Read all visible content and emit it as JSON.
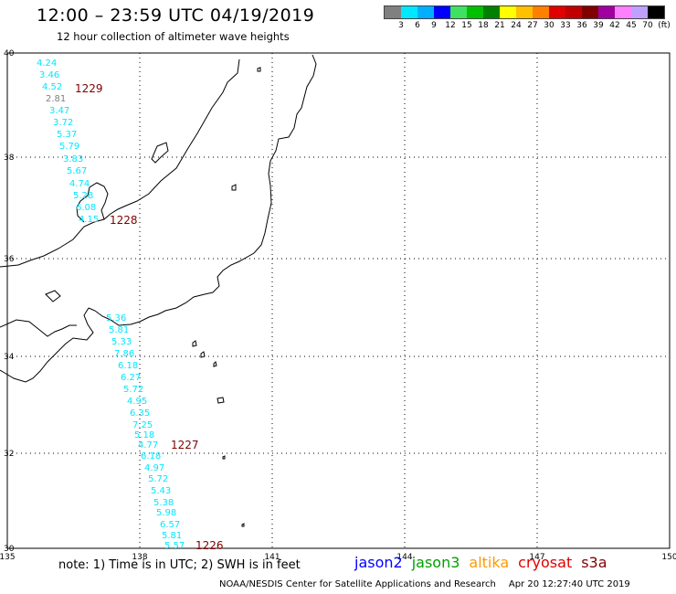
{
  "header": {
    "title": "12:00 – 23:59 UTC 04/19/2019",
    "subtitle": "12 hour collection of altimeter wave heights"
  },
  "colorbar": {
    "colors": [
      "#808080",
      "#00e8ff",
      "#00b0ff",
      "#0000ff",
      "#40e060",
      "#00c000",
      "#008000",
      "#ffff00",
      "#ffc000",
      "#ff8000",
      "#e00000",
      "#c00000",
      "#800000",
      "#a000a0",
      "#ff80ff",
      "#c0a0ff",
      "#000000"
    ],
    "labels": [
      "3",
      "6",
      "9",
      "12",
      "15",
      "18",
      "21",
      "24",
      "27",
      "30",
      "33",
      "36",
      "39",
      "42",
      "45",
      "70",
      "(ft)"
    ]
  },
  "axes": {
    "lon_labels": [
      "135",
      "138",
      "141",
      "144",
      "147",
      "150"
    ],
    "lat_labels": [
      "40",
      "38",
      "36",
      "34",
      "32",
      "30"
    ]
  },
  "tracks": [
    {
      "id": "1229",
      "satellite": "cryosat",
      "values": [
        {
          "text": "4.24",
          "color": "#00e8ff"
        },
        {
          "text": "3.46",
          "color": "#00e8ff"
        },
        {
          "text": "4.52",
          "color": "#00e8ff"
        },
        {
          "text": "2.81",
          "color": "#808080"
        },
        {
          "text": "3.47",
          "color": "#00e8ff"
        },
        {
          "text": "3.72",
          "color": "#00e8ff"
        },
        {
          "text": "5.37",
          "color": "#00e8ff"
        },
        {
          "text": "5.79",
          "color": "#00e8ff"
        },
        {
          "text": "3.83",
          "color": "#00e8ff"
        },
        {
          "text": "5.67",
          "color": "#00e8ff"
        },
        {
          "text": "4.74",
          "color": "#00e8ff"
        },
        {
          "text": "5.28",
          "color": "#00e8ff"
        },
        {
          "text": "6.08",
          "color": "#00e8ff"
        },
        {
          "text": "4.15",
          "color": "#00e8ff"
        }
      ]
    },
    {
      "id": "1228",
      "satellite": "cryosat",
      "values": []
    },
    {
      "id": "1227",
      "satellite": "cryosat",
      "values": [
        {
          "text": "5.36",
          "color": "#00e8ff"
        },
        {
          "text": "5.81",
          "color": "#00e8ff"
        },
        {
          "text": "5.33",
          "color": "#00e8ff"
        },
        {
          "text": "7.86",
          "color": "#00e8ff"
        },
        {
          "text": "6.18",
          "color": "#00e8ff"
        },
        {
          "text": "6.27",
          "color": "#00e8ff"
        },
        {
          "text": "5.72",
          "color": "#00e8ff"
        },
        {
          "text": "4.95",
          "color": "#00e8ff"
        },
        {
          "text": "6.35",
          "color": "#00e8ff"
        },
        {
          "text": "7.25",
          "color": "#00e8ff"
        },
        {
          "text": "5.18",
          "color": "#00e8ff"
        },
        {
          "text": "4.77",
          "color": "#00e8ff"
        },
        {
          "text": "6.18",
          "color": "#00e8ff"
        },
        {
          "text": "4.97",
          "color": "#00e8ff"
        },
        {
          "text": "5.72",
          "color": "#00e8ff"
        },
        {
          "text": "5.43",
          "color": "#00e8ff"
        },
        {
          "text": "5.38",
          "color": "#00e8ff"
        },
        {
          "text": "5.98",
          "color": "#00e8ff"
        },
        {
          "text": "6.57",
          "color": "#00e8ff"
        },
        {
          "text": "5.81",
          "color": "#00e8ff"
        },
        {
          "text": "5.57",
          "color": "#00e8ff"
        }
      ]
    },
    {
      "id": "1226",
      "satellite": "cryosat",
      "values": []
    }
  ],
  "track_label_color": "#800000",
  "footer": {
    "note": "note:  1) Time is in UTC;  2) SWH is in feet",
    "legend": [
      {
        "name": "jason2",
        "color": "#0000ff"
      },
      {
        "name": "jason3",
        "color": "#00a000"
      },
      {
        "name": "altika",
        "color": "#ff9900"
      },
      {
        "name": "cryosat",
        "color": "#e00000"
      },
      {
        "name": "s3a",
        "color": "#800000"
      }
    ],
    "credit": "NOAA/NESDIS Center for Satellite Applications and Research",
    "timestamp": "Apr 20 12:27:40 UTC 2019"
  }
}
